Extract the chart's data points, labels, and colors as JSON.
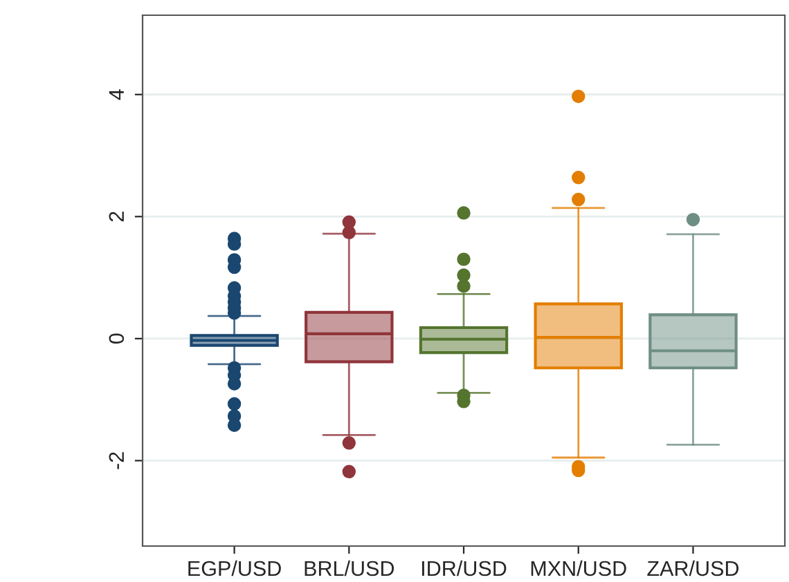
{
  "chart_data": {
    "type": "box",
    "categories": [
      "EGP/USD",
      "BRL/USD",
      "IDR/USD",
      "MXN/USD",
      "ZAR/USD"
    ],
    "colors": [
      "#1a476f",
      "#90353b",
      "#55752f",
      "#e37e00",
      "#6e8e84"
    ],
    "boxes": [
      {
        "low": -0.42,
        "q1": -0.11,
        "median": -0.03,
        "q3": 0.05,
        "high": 0.37,
        "outliers": [
          1.64,
          1.55,
          1.29,
          1.17,
          0.83,
          0.7,
          0.6,
          0.5,
          0.42,
          -0.48,
          -0.6,
          -0.74,
          -1.07,
          -1.27,
          -1.42
        ]
      },
      {
        "low": -1.58,
        "q1": -0.38,
        "median": 0.08,
        "q3": 0.43,
        "high": 1.72,
        "outliers": [
          1.91,
          1.74,
          -1.71,
          -2.18
        ]
      },
      {
        "low": -0.89,
        "q1": -0.23,
        "median": -0.01,
        "q3": 0.18,
        "high": 0.73,
        "outliers": [
          2.06,
          1.3,
          1.04,
          0.86,
          -0.93,
          -1.03
        ]
      },
      {
        "low": -1.95,
        "q1": -0.48,
        "median": 0.02,
        "q3": 0.57,
        "high": 2.14,
        "outliers": [
          3.97,
          2.64,
          2.28,
          -2.1,
          -2.16
        ]
      },
      {
        "low": -1.74,
        "q1": -0.48,
        "median": -0.2,
        "q3": 0.39,
        "high": 1.71,
        "outliers": [
          1.95
        ]
      }
    ],
    "ylim": [
      -3.4,
      5.3
    ],
    "yticks": [
      -2,
      0,
      2,
      4
    ],
    "grid": "y"
  }
}
